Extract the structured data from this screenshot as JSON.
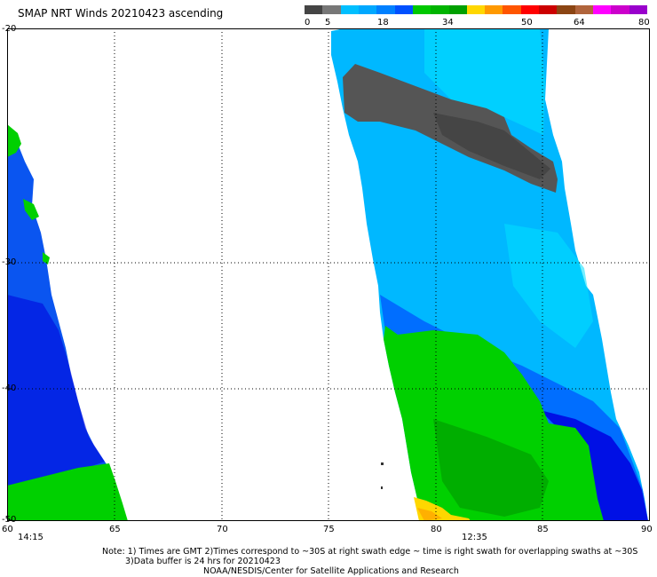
{
  "title": "SMAP NRT Winds 20210423 ascending",
  "colorbar": {
    "labels": [
      "0",
      "5",
      "18",
      "34",
      "50",
      "64",
      "80"
    ],
    "colors": [
      "#444444",
      "#777777",
      "#00bfff",
      "#00a8ff",
      "#0080ff",
      "#0050ff",
      "#00c800",
      "#00b400",
      "#00a000",
      "#ffd700",
      "#ff9900",
      "#ff5500",
      "#ff0000",
      "#cc0000",
      "#8b4513",
      "#b0643c",
      "#ff00ff",
      "#cc00cc",
      "#9900cc"
    ]
  },
  "lat_labels": [
    "-20",
    "-30",
    "-40",
    "-50"
  ],
  "lon_labels": [
    "60",
    "65",
    "70",
    "75",
    "80",
    "85",
    "90"
  ],
  "times": [
    "14:15",
    "12:35"
  ],
  "note": {
    "line1": "Note: 1) Times are GMT 2)Times correspond to ~30S at right swath edge ~ time is right swath for overlapping swaths at ~30S",
    "line2": "3)Data buffer is 24 hrs for 20210423",
    "line3": "NOAA/NESDIS/Center for Satellite Applications and Research"
  },
  "palette": {
    "gray": "#555555",
    "light_blue": "#00b8ff",
    "cyan": "#00e0ff",
    "blue": "#0050ff",
    "deep_blue": "#0000e0",
    "green": "#00d000",
    "dark_green": "#00a000",
    "yellow": "#ffd700",
    "grid": "#000000"
  }
}
